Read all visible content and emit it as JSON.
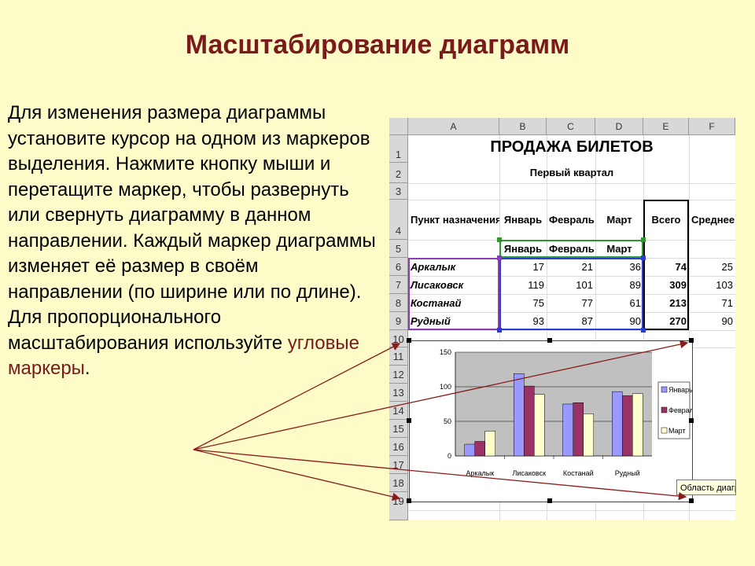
{
  "slide": {
    "title": "Масштабирование диаграмм",
    "body": "Для изменения размера диаграммы установите курсор на одном из маркеров выделения. Нажмите кнопку мыши и перетащите маркер, чтобы развернуть или свернуть диаграмму в данном направлении. Каждый маркер диаграммы изменяет её размер в своём направлении (по ширине или по длине). Для пропорционального масштабирования используйте ",
    "highlight": "угловые маркеры",
    "period": "."
  },
  "sheet": {
    "columns": [
      "A",
      "B",
      "C",
      "D",
      "E",
      "F"
    ],
    "rows": [
      "1",
      "2",
      "3",
      "4",
      "5",
      "6",
      "7",
      "8",
      "9",
      "10",
      "11",
      "12",
      "13",
      "14",
      "15",
      "16",
      "17",
      "18",
      "19"
    ],
    "title": "ПРОДАЖА БИЛЕТОВ",
    "subtitle": "Первый квартал",
    "headers": [
      "Пункт назначения",
      "Январь",
      "Февраль",
      "Март",
      "Всего",
      "Среднее"
    ],
    "row5": [
      "Январь",
      "Февраль",
      "Март"
    ],
    "data": [
      {
        "city": "Аркалык",
        "jan": "17",
        "feb": "21",
        "mar": "36",
        "total": "74",
        "avg": "25"
      },
      {
        "city": "Лисаковск",
        "jan": "119",
        "feb": "101",
        "mar": "89",
        "total": "309",
        "avg": "103"
      },
      {
        "city": "Костанай",
        "jan": "75",
        "feb": "77",
        "mar": "61",
        "total": "213",
        "avg": "71"
      },
      {
        "city": "Рудный",
        "jan": "93",
        "feb": "87",
        "mar": "90",
        "total": "270",
        "avg": "90"
      }
    ],
    "tooltip": "Область диагр"
  },
  "chart_data": {
    "type": "bar",
    "categories": [
      "Аркалык",
      "Лисаковск",
      "Костанай",
      "Рудный"
    ],
    "series": [
      {
        "name": "Январь",
        "values": [
          17,
          119,
          75,
          93
        ],
        "color": "#9999ff"
      },
      {
        "name": "Февраль",
        "values": [
          21,
          101,
          77,
          87
        ],
        "color": "#993366"
      },
      {
        "name": "Март",
        "values": [
          36,
          89,
          61,
          90
        ],
        "color": "#ffffcc"
      }
    ],
    "yticks": [
      "0",
      "50",
      "100",
      "150"
    ],
    "ylim": [
      0,
      150
    ],
    "grid": true,
    "legend": "right",
    "plot_bg": "#c0c0c0"
  },
  "colors": {
    "title": "#7a1a1a",
    "background": "#fdfbc8",
    "arrow": "#8b1a1a"
  }
}
